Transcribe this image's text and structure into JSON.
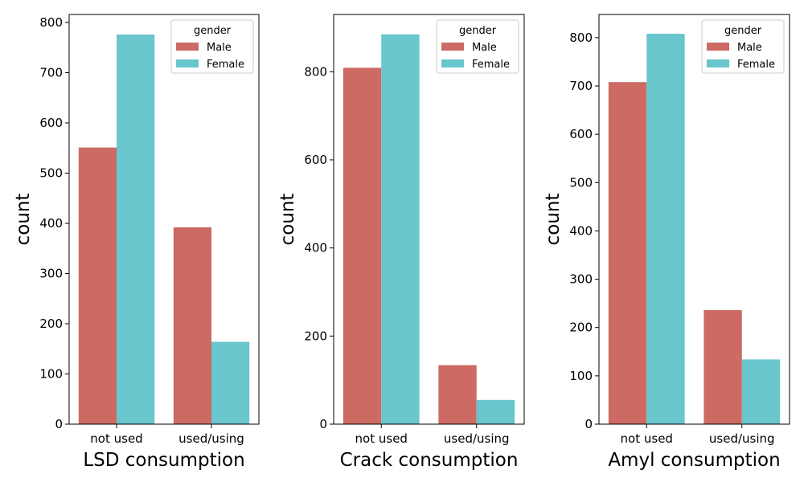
{
  "legend_title": "gender",
  "colors": {
    "Male": "#cc6a63",
    "Female": "#69c6cd"
  },
  "chart_data": [
    {
      "type": "bar",
      "xlabel": "LSD consumption",
      "ylabel": "count",
      "categories": [
        "not used",
        "used/using"
      ],
      "ylim": [
        0,
        816
      ],
      "yticks": [
        0,
        100,
        200,
        300,
        400,
        500,
        600,
        700,
        800
      ],
      "legend": "top-right",
      "series": [
        {
          "name": "Male",
          "values": [
            551,
            392
          ]
        },
        {
          "name": "Female",
          "values": [
            776,
            164
          ]
        }
      ]
    },
    {
      "type": "bar",
      "xlabel": "Crack consumption",
      "ylabel": "count",
      "categories": [
        "not used",
        "used/using"
      ],
      "ylim": [
        0,
        930
      ],
      "yticks": [
        0,
        200,
        400,
        600,
        800
      ],
      "legend": "top-right",
      "series": [
        {
          "name": "Male",
          "values": [
            809,
            134
          ]
        },
        {
          "name": "Female",
          "values": [
            885,
            55
          ]
        }
      ]
    },
    {
      "type": "bar",
      "xlabel": "Amyl consumption",
      "ylabel": "count",
      "categories": [
        "not used",
        "used/using"
      ],
      "ylim": [
        0,
        848
      ],
      "yticks": [
        0,
        100,
        200,
        300,
        400,
        500,
        600,
        700,
        800
      ],
      "legend": "top-right",
      "series": [
        {
          "name": "Male",
          "values": [
            708,
            236
          ]
        },
        {
          "name": "Female",
          "values": [
            808,
            134
          ]
        }
      ]
    }
  ]
}
